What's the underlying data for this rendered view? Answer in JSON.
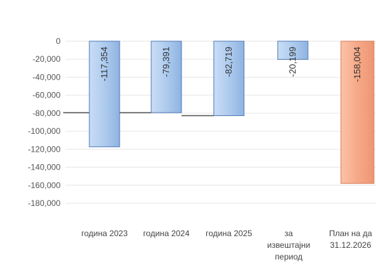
{
  "chart_data": {
    "type": "bar",
    "title": "",
    "xlabel": "",
    "ylabel": "",
    "ylim": [
      -180000,
      0
    ],
    "yticks": [
      0,
      -20000,
      -40000,
      -60000,
      -80000,
      -100000,
      -120000,
      -140000,
      -160000,
      -180000
    ],
    "ytick_labels": [
      "0",
      "-20,000",
      "-40,000",
      "-60,000",
      "-80,000",
      "-100,000",
      "-120,000",
      "-140,000",
      "-160,000",
      "-180,000"
    ],
    "grid": true,
    "legend": "none",
    "categories": [
      [
        "година 2023"
      ],
      [
        "година 2024"
      ],
      [
        "година 2025"
      ],
      [
        "за",
        "извештајни",
        "период"
      ],
      [
        "План на да",
        "31.12.2026"
      ]
    ],
    "values": [
      -117354,
      -79391,
      -82719,
      -20199,
      -158004
    ],
    "data_labels": [
      "-117,354",
      "-79,391",
      "-82,719",
      "-20,199",
      "-158,004"
    ],
    "bar_colors": [
      "#a9c8ec",
      "#a9c8ec",
      "#a9c8ec",
      "#a9c8ec",
      "#f6a988"
    ],
    "bar_edge_colors": [
      "#4f78b5",
      "#4f78b5",
      "#4f78b5",
      "#4f78b5",
      "#d77a55"
    ]
  }
}
